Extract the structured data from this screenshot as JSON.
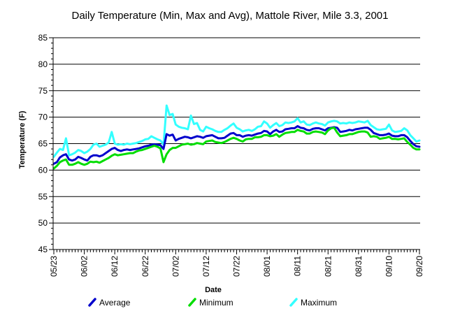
{
  "chart_data": {
    "type": "line",
    "title": "Daily Temperature (Min, Max and Avg),  Mattole River, Mile 3.3, 2001",
    "xlabel": "Date",
    "ylabel": "Temperature (F)",
    "ylim": [
      45,
      85
    ],
    "yticks": [
      45,
      50,
      55,
      60,
      65,
      70,
      75,
      80,
      85
    ],
    "x_tick_labels": [
      "05/23",
      "06/02",
      "06/12",
      "06/22",
      "07/02",
      "07/12",
      "07/22",
      "08/01",
      "08/11",
      "08/21",
      "08/31",
      "09/10",
      "09/20"
    ],
    "grid": "horizontal",
    "legend_position": "bottom",
    "x": [
      "05/23",
      "05/24",
      "05/25",
      "05/26",
      "05/27",
      "05/28",
      "05/29",
      "05/30",
      "05/31",
      "06/01",
      "06/02",
      "06/03",
      "06/04",
      "06/05",
      "06/06",
      "06/07",
      "06/08",
      "06/09",
      "06/10",
      "06/11",
      "06/12",
      "06/13",
      "06/14",
      "06/15",
      "06/16",
      "06/17",
      "06/18",
      "06/19",
      "06/20",
      "06/21",
      "06/22",
      "06/23",
      "06/24",
      "06/25",
      "06/26",
      "06/27",
      "06/28",
      "06/29",
      "06/30",
      "07/01",
      "07/02",
      "07/03",
      "07/04",
      "07/05",
      "07/06",
      "07/07",
      "07/08",
      "07/09",
      "07/10",
      "07/11",
      "07/12",
      "07/13",
      "07/14",
      "07/15",
      "07/16",
      "07/17",
      "07/18",
      "07/19",
      "07/20",
      "07/21",
      "07/22",
      "07/23",
      "07/24",
      "07/25",
      "07/26",
      "07/27",
      "07/28",
      "07/29",
      "07/30",
      "07/31",
      "08/01",
      "08/02",
      "08/03",
      "08/04",
      "08/05",
      "08/06",
      "08/07",
      "08/08",
      "08/09",
      "08/10",
      "08/11",
      "08/12",
      "08/13",
      "08/14",
      "08/15",
      "08/16",
      "08/17",
      "08/18",
      "08/19",
      "08/20",
      "08/21",
      "08/22",
      "08/23",
      "08/24",
      "08/25",
      "08/26",
      "08/27",
      "08/28",
      "08/29",
      "08/30",
      "08/31",
      "09/01",
      "09/02",
      "09/03",
      "09/04",
      "09/05",
      "09/06",
      "09/07",
      "09/08",
      "09/09",
      "09/10",
      "09/11",
      "09/12",
      "09/13",
      "09/14",
      "09/15",
      "09/16",
      "09/17",
      "09/18",
      "09/19",
      "09/20"
    ],
    "series": [
      {
        "name": "Average",
        "color": "#0000CC",
        "values": [
          61.2,
          61.5,
          62.4,
          62.8,
          63.0,
          62.0,
          61.8,
          62.0,
          62.5,
          62.3,
          62.0,
          61.8,
          62.5,
          62.8,
          62.8,
          62.6,
          62.8,
          63.2,
          63.6,
          64.0,
          64.2,
          63.8,
          63.6,
          63.8,
          63.9,
          63.8,
          63.9,
          64.0,
          64.1,
          64.3,
          64.5,
          64.6,
          64.8,
          64.9,
          64.8,
          64.7,
          64.0,
          66.8,
          66.5,
          66.7,
          65.6,
          65.9,
          66.1,
          66.3,
          66.2,
          66.0,
          66.2,
          66.4,
          66.3,
          66.1,
          66.4,
          66.5,
          66.6,
          66.3,
          66.0,
          66.0,
          66.1,
          66.5,
          66.9,
          67.0,
          66.6,
          66.6,
          66.3,
          66.5,
          66.6,
          66.5,
          66.7,
          66.9,
          67.0,
          67.4,
          67.3,
          66.8,
          67.3,
          67.6,
          67.2,
          67.3,
          67.7,
          67.8,
          67.9,
          67.9,
          68.3,
          68.0,
          67.9,
          67.6,
          67.5,
          67.8,
          67.9,
          67.9,
          67.7,
          67.5,
          67.9,
          68.0,
          68.1,
          68.0,
          67.2,
          67.3,
          67.4,
          67.6,
          67.5,
          67.7,
          67.8,
          67.9,
          68.0,
          68.0,
          67.6,
          67.0,
          66.8,
          66.6,
          66.6,
          66.7,
          66.9,
          66.5,
          66.4,
          66.4,
          66.6,
          66.6,
          66.2,
          65.5,
          64.9,
          64.5,
          64.4
        ]
      },
      {
        "name": "Minimum",
        "color": "#00DD00",
        "values": [
          60.3,
          60.8,
          61.5,
          61.8,
          62.0,
          61.0,
          61.0,
          61.2,
          61.5,
          61.2,
          61.0,
          61.2,
          61.6,
          61.5,
          61.6,
          61.4,
          61.7,
          62.0,
          62.3,
          62.7,
          63.0,
          62.8,
          62.9,
          63.0,
          63.1,
          63.2,
          63.2,
          63.5,
          63.7,
          63.8,
          64.0,
          64.2,
          64.4,
          64.6,
          64.4,
          64.1,
          61.5,
          63.0,
          63.8,
          64.2,
          64.2,
          64.5,
          64.8,
          64.9,
          65.0,
          64.8,
          64.9,
          65.1,
          65.0,
          64.9,
          65.4,
          65.5,
          65.6,
          65.3,
          65.2,
          65.1,
          65.3,
          65.6,
          65.9,
          66.1,
          65.9,
          65.6,
          65.4,
          65.8,
          65.9,
          65.9,
          66.2,
          66.2,
          66.3,
          66.6,
          66.6,
          66.4,
          66.5,
          66.8,
          66.3,
          66.7,
          67.0,
          67.1,
          67.2,
          67.2,
          67.6,
          67.4,
          67.3,
          66.9,
          66.9,
          67.2,
          67.3,
          67.2,
          67.1,
          66.8,
          67.5,
          67.9,
          68.0,
          67.1,
          66.4,
          66.5,
          66.6,
          66.8,
          66.8,
          67.0,
          67.2,
          67.3,
          67.3,
          67.1,
          66.3,
          66.4,
          66.3,
          65.9,
          66.0,
          66.1,
          66.3,
          65.9,
          65.9,
          65.8,
          65.9,
          66.0,
          65.3,
          64.8,
          64.2,
          63.9,
          63.9
        ]
      },
      {
        "name": "Maximum",
        "color": "#33FFFF",
        "values": [
          62.5,
          63.3,
          64.0,
          63.8,
          66.0,
          62.8,
          63.0,
          63.3,
          63.8,
          63.6,
          63.2,
          63.5,
          64.0,
          64.8,
          65.0,
          64.4,
          64.6,
          64.8,
          65.2,
          67.2,
          65.0,
          64.8,
          64.9,
          64.8,
          65.0,
          64.9,
          65.0,
          65.1,
          65.3,
          65.5,
          65.8,
          65.9,
          66.4,
          66.1,
          65.8,
          65.6,
          64.8,
          72.2,
          70.4,
          70.6,
          68.6,
          68.2,
          68.0,
          67.9,
          67.7,
          70.3,
          68.7,
          68.9,
          67.6,
          67.3,
          68.2,
          67.9,
          67.7,
          67.4,
          67.2,
          67.2,
          67.6,
          67.9,
          68.4,
          68.8,
          68.0,
          67.7,
          67.3,
          67.5,
          67.6,
          67.4,
          67.7,
          68.2,
          68.3,
          69.2,
          68.8,
          68.0,
          68.5,
          68.9,
          68.3,
          68.5,
          69.0,
          68.9,
          69.0,
          69.2,
          69.8,
          69.0,
          69.2,
          68.6,
          68.5,
          68.8,
          69.0,
          68.8,
          68.7,
          68.4,
          69.0,
          69.2,
          69.3,
          69.2,
          68.8,
          68.9,
          68.8,
          69.0,
          68.9,
          69.0,
          69.2,
          69.1,
          69.0,
          69.3,
          68.5,
          68.1,
          67.7,
          67.6,
          67.7,
          67.8,
          68.6,
          67.5,
          67.2,
          67.3,
          67.4,
          67.9,
          67.5,
          66.6,
          66.0,
          65.4,
          65.6
        ]
      }
    ]
  }
}
